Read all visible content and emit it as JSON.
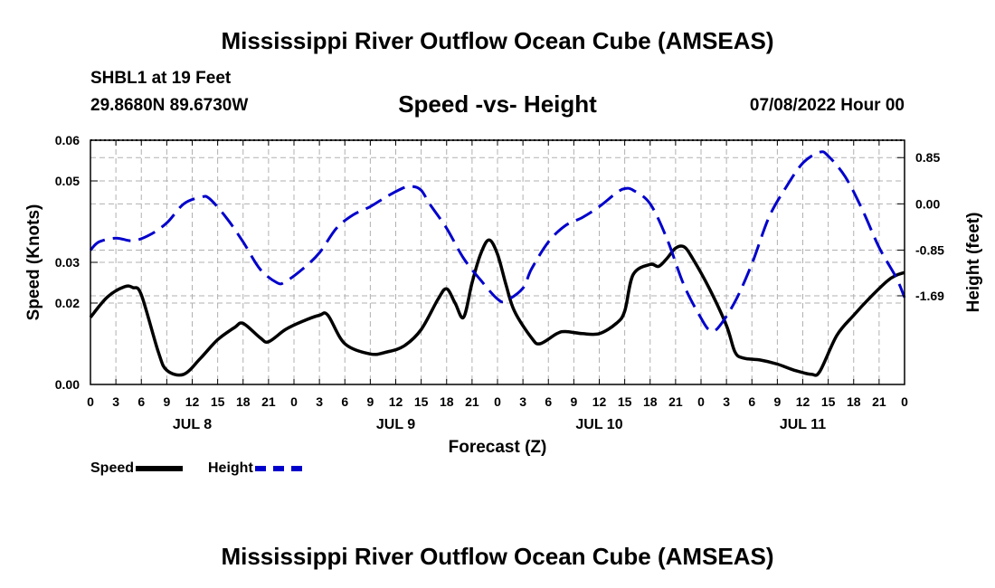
{
  "header": {
    "title": "Mississippi River Outflow Ocean Cube (AMSEAS)",
    "station": "SHBL1 at 19 Feet",
    "coords": "29.8680N  89.6730W",
    "run_date": "07/08/2022 Hour 00"
  },
  "footer": {
    "title": "Mississippi River Outflow Ocean Cube (AMSEAS)"
  },
  "chart_data": {
    "type": "line",
    "title": "Speed -vs- Height",
    "xlabel": "Forecast (Z)",
    "ylabel": "Speed (Knots)",
    "y2label": "Height (feet)",
    "xlim": [
      0,
      96
    ],
    "ylim": [
      0,
      0.06
    ],
    "y2lim": [
      -3.32,
      1.17
    ],
    "yticks": [
      0,
      0.02,
      0.03,
      0.05,
      0.06
    ],
    "ytick_labels": [
      "0.00",
      "0.02",
      "0.03",
      "0.05",
      "0.06"
    ],
    "y2ticks": [
      0.85,
      0.0,
      -0.85,
      -1.69
    ],
    "y2tick_labels": [
      "0.85",
      "0.00",
      "-0.85",
      "-1.69"
    ],
    "xtick_hours": [
      0,
      3,
      6,
      9,
      12,
      15,
      18,
      21,
      24,
      27,
      30,
      33,
      36,
      39,
      42,
      45,
      48,
      51,
      54,
      57,
      60,
      63,
      66,
      69,
      72,
      75,
      78,
      81,
      84,
      87,
      90,
      93,
      96
    ],
    "xtick_labels": [
      "0",
      "3",
      "6",
      "9",
      "12",
      "15",
      "18",
      "21",
      "0",
      "3",
      "6",
      "9",
      "12",
      "15",
      "18",
      "21",
      "0",
      "3",
      "6",
      "9",
      "12",
      "15",
      "18",
      "21",
      "0",
      "3",
      "6",
      "9",
      "12",
      "15",
      "18",
      "21",
      "0"
    ],
    "day_labels": [
      {
        "label": "JUL 8",
        "hour": 12
      },
      {
        "label": "JUL 9",
        "hour": 36
      },
      {
        "label": "JUL 10",
        "hour": 60
      },
      {
        "label": "JUL 11",
        "hour": 84
      }
    ],
    "legend": [
      {
        "name": "Speed",
        "color": "#000000",
        "style": "solid"
      },
      {
        "name": "Height",
        "color": "#0000cc",
        "style": "dashed"
      }
    ],
    "series": [
      {
        "name": "Speed",
        "axis": "left",
        "color": "#000000",
        "style": "solid",
        "points": [
          [
            0,
            0.0165
          ],
          [
            2,
            0.0215
          ],
          [
            4,
            0.024
          ],
          [
            5,
            0.0238
          ],
          [
            6,
            0.022
          ],
          [
            8,
            0.008
          ],
          [
            9,
            0.0035
          ],
          [
            11,
            0.0025
          ],
          [
            13,
            0.0065
          ],
          [
            15,
            0.011
          ],
          [
            17,
            0.014
          ],
          [
            18,
            0.015
          ],
          [
            20,
            0.0115
          ],
          [
            21,
            0.0105
          ],
          [
            23,
            0.0135
          ],
          [
            25,
            0.0155
          ],
          [
            27,
            0.017
          ],
          [
            28,
            0.017
          ],
          [
            30,
            0.01
          ],
          [
            33,
            0.0075
          ],
          [
            35,
            0.008
          ],
          [
            37,
            0.0095
          ],
          [
            39,
            0.0135
          ],
          [
            41,
            0.021
          ],
          [
            42,
            0.0235
          ],
          [
            43,
            0.02
          ],
          [
            44,
            0.0165
          ],
          [
            45,
            0.025
          ],
          [
            46,
            0.032
          ],
          [
            47,
            0.0355
          ],
          [
            48,
            0.032
          ],
          [
            49,
            0.0245
          ],
          [
            50,
            0.018
          ],
          [
            52,
            0.0115
          ],
          [
            53,
            0.01
          ],
          [
            55,
            0.0125
          ],
          [
            56,
            0.013
          ],
          [
            58,
            0.0125
          ],
          [
            60,
            0.0125
          ],
          [
            62,
            0.015
          ],
          [
            63,
            0.018
          ],
          [
            64,
            0.027
          ],
          [
            66,
            0.0295
          ],
          [
            67,
            0.029
          ],
          [
            68,
            0.031
          ],
          [
            69,
            0.0335
          ],
          [
            70,
            0.0338
          ],
          [
            71,
            0.031
          ],
          [
            73,
            0.0235
          ],
          [
            75,
            0.0145
          ],
          [
            76,
            0.008
          ],
          [
            77,
            0.0065
          ],
          [
            79,
            0.006
          ],
          [
            81,
            0.005
          ],
          [
            83,
            0.0035
          ],
          [
            85,
            0.0025
          ],
          [
            86,
            0.0032
          ],
          [
            88,
            0.012
          ],
          [
            90,
            0.017
          ],
          [
            92,
            0.0215
          ],
          [
            94,
            0.0255
          ],
          [
            95,
            0.0268
          ],
          [
            96,
            0.0275
          ]
        ]
      },
      {
        "name": "Height",
        "axis": "right",
        "color": "#0000cc",
        "style": "dashed",
        "points": [
          [
            0,
            -0.85
          ],
          [
            1,
            -0.7
          ],
          [
            3,
            -0.63
          ],
          [
            5,
            -0.68
          ],
          [
            7,
            -0.57
          ],
          [
            9,
            -0.35
          ],
          [
            11,
            0.0
          ],
          [
            13,
            0.12
          ],
          [
            14,
            0.1
          ],
          [
            16,
            -0.25
          ],
          [
            18,
            -0.7
          ],
          [
            20,
            -1.2
          ],
          [
            22,
            -1.45
          ],
          [
            23,
            -1.43
          ],
          [
            25,
            -1.2
          ],
          [
            27,
            -0.9
          ],
          [
            29,
            -0.45
          ],
          [
            31,
            -0.2
          ],
          [
            33,
            -0.05
          ],
          [
            35,
            0.14
          ],
          [
            37,
            0.3
          ],
          [
            38,
            0.32
          ],
          [
            39,
            0.25
          ],
          [
            40,
            0.0
          ],
          [
            42,
            -0.45
          ],
          [
            44,
            -1.0
          ],
          [
            46,
            -1.4
          ],
          [
            48,
            -1.75
          ],
          [
            49,
            -1.78
          ],
          [
            51,
            -1.55
          ],
          [
            52,
            -1.2
          ],
          [
            54,
            -0.7
          ],
          [
            56,
            -0.4
          ],
          [
            58,
            -0.25
          ],
          [
            60,
            -0.05
          ],
          [
            62,
            0.2
          ],
          [
            63,
            0.28
          ],
          [
            64,
            0.25
          ],
          [
            66,
            0.0
          ],
          [
            68,
            -0.65
          ],
          [
            70,
            -1.5
          ],
          [
            72,
            -2.1
          ],
          [
            73,
            -2.32
          ],
          [
            74,
            -2.28
          ],
          [
            76,
            -1.8
          ],
          [
            78,
            -1.1
          ],
          [
            80,
            -0.25
          ],
          [
            82,
            0.3
          ],
          [
            84,
            0.75
          ],
          [
            86,
            0.95
          ],
          [
            87,
            0.88
          ],
          [
            89,
            0.5
          ],
          [
            91,
            -0.1
          ],
          [
            93,
            -0.8
          ],
          [
            95,
            -1.35
          ],
          [
            96,
            -1.72
          ]
        ]
      }
    ]
  }
}
